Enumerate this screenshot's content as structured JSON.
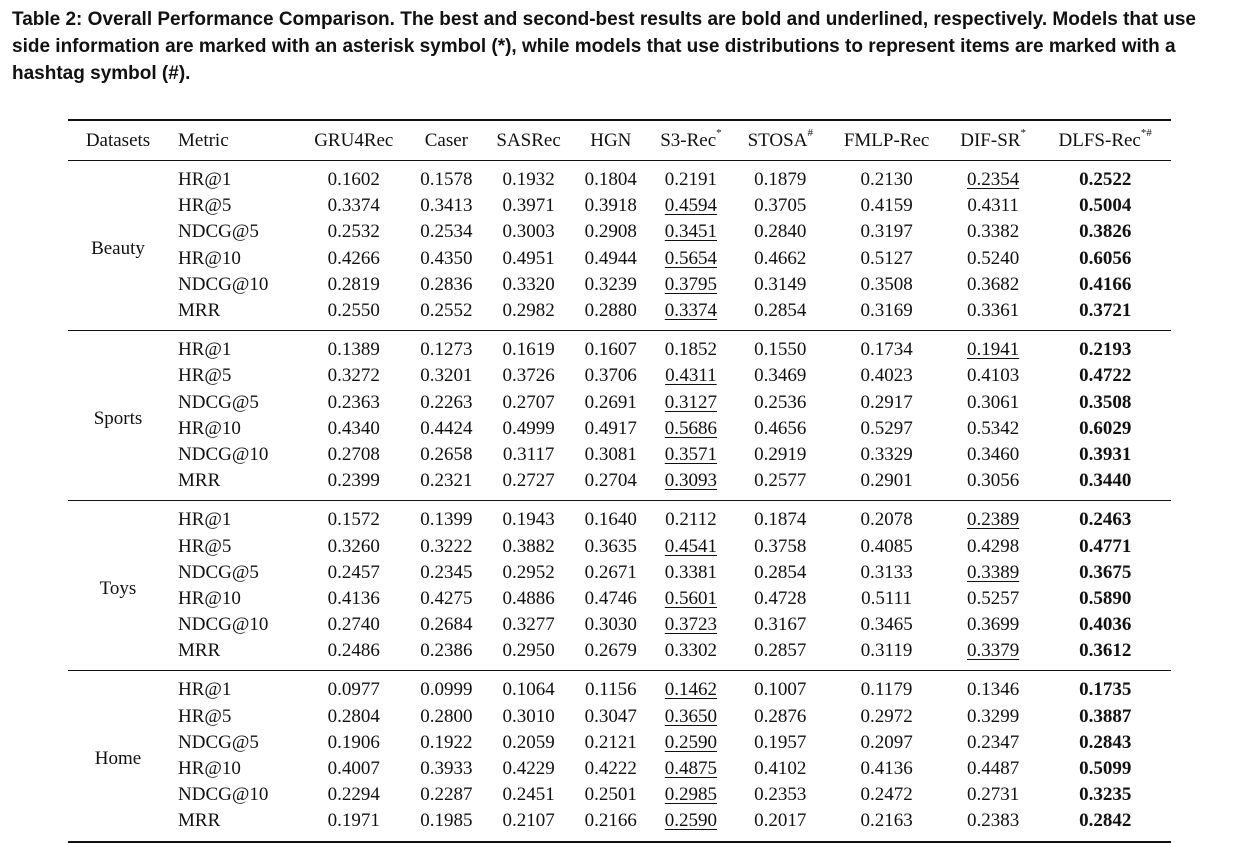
{
  "caption": "Table 2: Overall Performance Comparison. The best and second-best results are bold and underlined, respectively. Models that use side information are marked with an asterisk symbol (*), while models that use distributions to represent items are marked with a hashtag symbol (#).",
  "header": {
    "datasets": "Datasets",
    "metric": "Metric",
    "models": [
      {
        "name": "GRU4Rec",
        "mark": ""
      },
      {
        "name": "Caser",
        "mark": ""
      },
      {
        "name": "SASRec",
        "mark": ""
      },
      {
        "name": "HGN",
        "mark": ""
      },
      {
        "name": "S3-Rec",
        "mark": "*"
      },
      {
        "name": "STOSA",
        "mark": "#"
      },
      {
        "name": "FMLP-Rec",
        "mark": ""
      },
      {
        "name": "DIF-SR",
        "mark": "*"
      },
      {
        "name": "DLFS-Rec",
        "mark": "*#"
      }
    ]
  },
  "groups": [
    {
      "dataset": "Beauty",
      "rows": [
        {
          "metric": "HR@1",
          "values": [
            "0.1602",
            "0.1578",
            "0.1932",
            "0.1804",
            "0.2191",
            "0.1879",
            "0.2130",
            "0.2354",
            "0.2522"
          ],
          "best": 8,
          "second": 7
        },
        {
          "metric": "HR@5",
          "values": [
            "0.3374",
            "0.3413",
            "0.3971",
            "0.3918",
            "0.4594",
            "0.3705",
            "0.4159",
            "0.4311",
            "0.5004"
          ],
          "best": 8,
          "second": 4
        },
        {
          "metric": "NDCG@5",
          "values": [
            "0.2532",
            "0.2534",
            "0.3003",
            "0.2908",
            "0.3451",
            "0.2840",
            "0.3197",
            "0.3382",
            "0.3826"
          ],
          "best": 8,
          "second": 4
        },
        {
          "metric": "HR@10",
          "values": [
            "0.4266",
            "0.4350",
            "0.4951",
            "0.4944",
            "0.5654",
            "0.4662",
            "0.5127",
            "0.5240",
            "0.6056"
          ],
          "best": 8,
          "second": 4
        },
        {
          "metric": "NDCG@10",
          "values": [
            "0.2819",
            "0.2836",
            "0.3320",
            "0.3239",
            "0.3795",
            "0.3149",
            "0.3508",
            "0.3682",
            "0.4166"
          ],
          "best": 8,
          "second": 4
        },
        {
          "metric": "MRR",
          "values": [
            "0.2550",
            "0.2552",
            "0.2982",
            "0.2880",
            "0.3374",
            "0.2854",
            "0.3169",
            "0.3361",
            "0.3721"
          ],
          "best": 8,
          "second": 4
        }
      ]
    },
    {
      "dataset": "Sports",
      "rows": [
        {
          "metric": "HR@1",
          "values": [
            "0.1389",
            "0.1273",
            "0.1619",
            "0.1607",
            "0.1852",
            "0.1550",
            "0.1734",
            "0.1941",
            "0.2193"
          ],
          "best": 8,
          "second": 7
        },
        {
          "metric": "HR@5",
          "values": [
            "0.3272",
            "0.3201",
            "0.3726",
            "0.3706",
            "0.4311",
            "0.3469",
            "0.4023",
            "0.4103",
            "0.4722"
          ],
          "best": 8,
          "second": 4
        },
        {
          "metric": "NDCG@5",
          "values": [
            "0.2363",
            "0.2263",
            "0.2707",
            "0.2691",
            "0.3127",
            "0.2536",
            "0.2917",
            "0.3061",
            "0.3508"
          ],
          "best": 8,
          "second": 4
        },
        {
          "metric": "HR@10",
          "values": [
            "0.4340",
            "0.4424",
            "0.4999",
            "0.4917",
            "0.5686",
            "0.4656",
            "0.5297",
            "0.5342",
            "0.6029"
          ],
          "best": 8,
          "second": 4
        },
        {
          "metric": "NDCG@10",
          "values": [
            "0.2708",
            "0.2658",
            "0.3117",
            "0.3081",
            "0.3571",
            "0.2919",
            "0.3329",
            "0.3460",
            "0.3931"
          ],
          "best": 8,
          "second": 4
        },
        {
          "metric": "MRR",
          "values": [
            "0.2399",
            "0.2321",
            "0.2727",
            "0.2704",
            "0.3093",
            "0.2577",
            "0.2901",
            "0.3056",
            "0.3440"
          ],
          "best": 8,
          "second": 4
        }
      ]
    },
    {
      "dataset": "Toys",
      "rows": [
        {
          "metric": "HR@1",
          "values": [
            "0.1572",
            "0.1399",
            "0.1943",
            "0.1640",
            "0.2112",
            "0.1874",
            "0.2078",
            "0.2389",
            "0.2463"
          ],
          "best": 8,
          "second": 7
        },
        {
          "metric": "HR@5",
          "values": [
            "0.3260",
            "0.3222",
            "0.3882",
            "0.3635",
            "0.4541",
            "0.3758",
            "0.4085",
            "0.4298",
            "0.4771"
          ],
          "best": 8,
          "second": 4
        },
        {
          "metric": "NDCG@5",
          "values": [
            "0.2457",
            "0.2345",
            "0.2952",
            "0.2671",
            "0.3381",
            "0.2854",
            "0.3133",
            "0.3389",
            "0.3675"
          ],
          "best": 8,
          "second": 7
        },
        {
          "metric": "HR@10",
          "values": [
            "0.4136",
            "0.4275",
            "0.4886",
            "0.4746",
            "0.5601",
            "0.4728",
            "0.5111",
            "0.5257",
            "0.5890"
          ],
          "best": 8,
          "second": 4
        },
        {
          "metric": "NDCG@10",
          "values": [
            "0.2740",
            "0.2684",
            "0.3277",
            "0.3030",
            "0.3723",
            "0.3167",
            "0.3465",
            "0.3699",
            "0.4036"
          ],
          "best": 8,
          "second": 4
        },
        {
          "metric": "MRR",
          "values": [
            "0.2486",
            "0.2386",
            "0.2950",
            "0.2679",
            "0.3302",
            "0.2857",
            "0.3119",
            "0.3379",
            "0.3612"
          ],
          "best": 8,
          "second": 7
        }
      ]
    },
    {
      "dataset": "Home",
      "rows": [
        {
          "metric": "HR@1",
          "values": [
            "0.0977",
            "0.0999",
            "0.1064",
            "0.1156",
            "0.1462",
            "0.1007",
            "0.1179",
            "0.1346",
            "0.1735"
          ],
          "best": 8,
          "second": 4
        },
        {
          "metric": "HR@5",
          "values": [
            "0.2804",
            "0.2800",
            "0.3010",
            "0.3047",
            "0.3650",
            "0.2876",
            "0.2972",
            "0.3299",
            "0.3887"
          ],
          "best": 8,
          "second": 4
        },
        {
          "metric": "NDCG@5",
          "values": [
            "0.1906",
            "0.1922",
            "0.2059",
            "0.2121",
            "0.2590",
            "0.1957",
            "0.2097",
            "0.2347",
            "0.2843"
          ],
          "best": 8,
          "second": 4
        },
        {
          "metric": "HR@10",
          "values": [
            "0.4007",
            "0.3933",
            "0.4229",
            "0.4222",
            "0.4875",
            "0.4102",
            "0.4136",
            "0.4487",
            "0.5099"
          ],
          "best": 8,
          "second": 4
        },
        {
          "metric": "NDCG@10",
          "values": [
            "0.2294",
            "0.2287",
            "0.2451",
            "0.2501",
            "0.2985",
            "0.2353",
            "0.2472",
            "0.2731",
            "0.3235"
          ],
          "best": 8,
          "second": 4
        },
        {
          "metric": "MRR",
          "values": [
            "0.1971",
            "0.1985",
            "0.2107",
            "0.2166",
            "0.2590",
            "0.2017",
            "0.2163",
            "0.2383",
            "0.2842"
          ],
          "best": 8,
          "second": 4
        }
      ]
    }
  ]
}
